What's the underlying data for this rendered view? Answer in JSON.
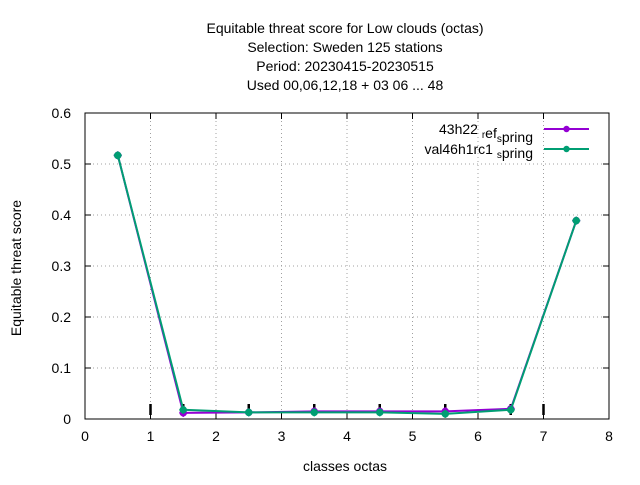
{
  "chart_data": {
    "type": "line",
    "title_lines": [
      "Equitable threat score  for Low clouds (octas)",
      "Selection: Sweden    125 stations",
      "Period: 20230415-20230515",
      "Used  00,06,12,18  + 03 06 ... 48"
    ],
    "xlabel": "classes octas",
    "ylabel": "Equitable threat score",
    "xlim": [
      0,
      8
    ],
    "ylim": [
      0,
      0.6
    ],
    "xticks": [
      "0",
      "1",
      "2",
      "3",
      "4",
      "5",
      "6",
      "7",
      "8"
    ],
    "yticks": [
      "0",
      "0.1",
      "0.2",
      "0.3",
      "0.4",
      "0.5",
      "0.6"
    ],
    "grid": true,
    "legend_position": "top-right",
    "series": [
      {
        "name": "43h22 ref_spring",
        "legend_main": "43h22 ",
        "legend_sub1": "r",
        "legend_mid": "ef",
        "legend_sub2": "s",
        "legend_end": "pring",
        "color": "#9400d3",
        "x": [
          0.5,
          1.5,
          2.5,
          3.5,
          4.5,
          5.5,
          6.5,
          7.5
        ],
        "values": [
          0.517,
          0.012,
          0.013,
          0.015,
          0.015,
          0.015,
          0.02,
          0.389
        ]
      },
      {
        "name": "val46h1rc1_spring",
        "legend_main": "val46h1rc1 ",
        "legend_sub1": "",
        "legend_mid": "",
        "legend_sub2": "s",
        "legend_end": "pring",
        "color": "#009e73",
        "x": [
          0.5,
          1.5,
          2.5,
          3.5,
          4.5,
          5.5,
          6.5,
          7.5
        ],
        "values": [
          0.517,
          0.018,
          0.013,
          0.013,
          0.013,
          0.01,
          0.018,
          0.389
        ]
      }
    ],
    "markers_on_axis": [
      1,
      1.5,
      2.5,
      3.5,
      4.5,
      5.5,
      6.5,
      7
    ]
  }
}
